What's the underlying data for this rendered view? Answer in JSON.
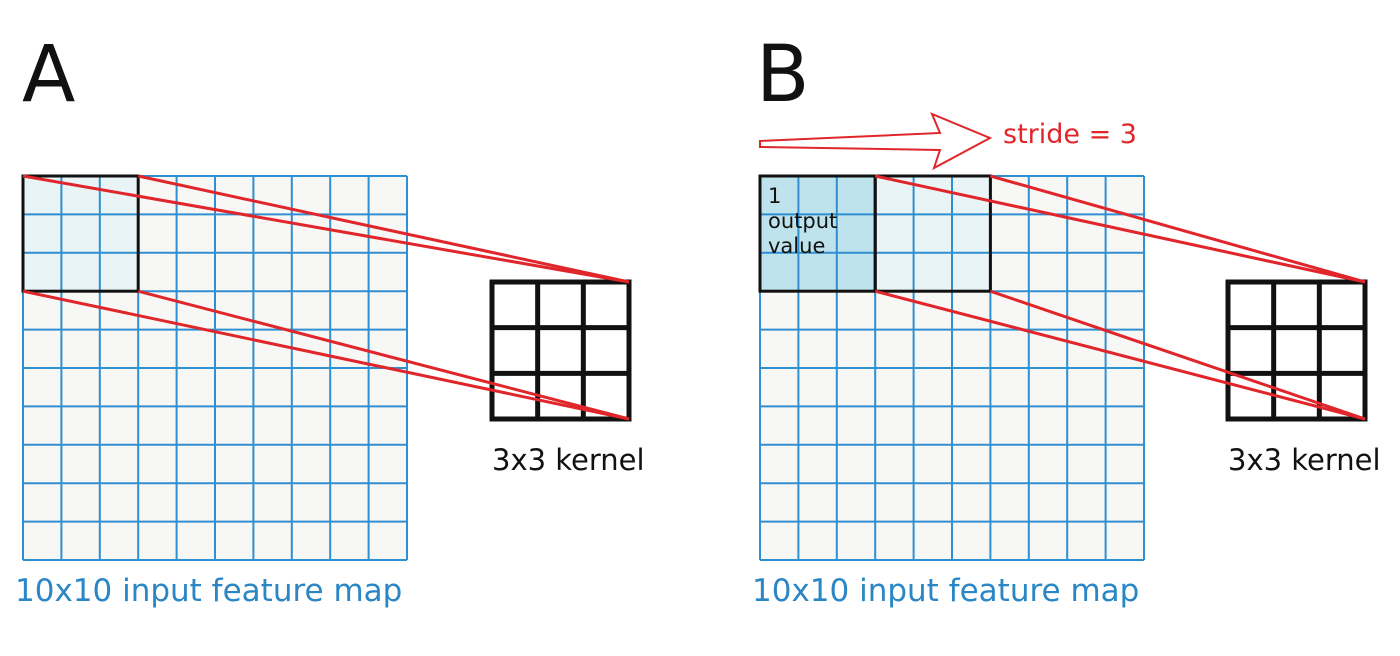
{
  "colors": {
    "grid": "#2f8fd0",
    "cell_fill": "#f7f7f5",
    "window_fill": "#e8f4f6",
    "output_fill": "#bfe3ec",
    "red": "#e0262b",
    "black": "#111111",
    "caption_blue": "#2b86c5"
  },
  "panel_a": {
    "letter": "A",
    "input_caption": "10x10 input feature map",
    "kernel_caption": "3x3 kernel"
  },
  "panel_b": {
    "letter": "B",
    "input_caption": "10x10 input feature map",
    "kernel_caption": "3x3 kernel",
    "stride_label": "stride = 3",
    "output_cell_lines": [
      "1",
      "output",
      "value"
    ]
  }
}
